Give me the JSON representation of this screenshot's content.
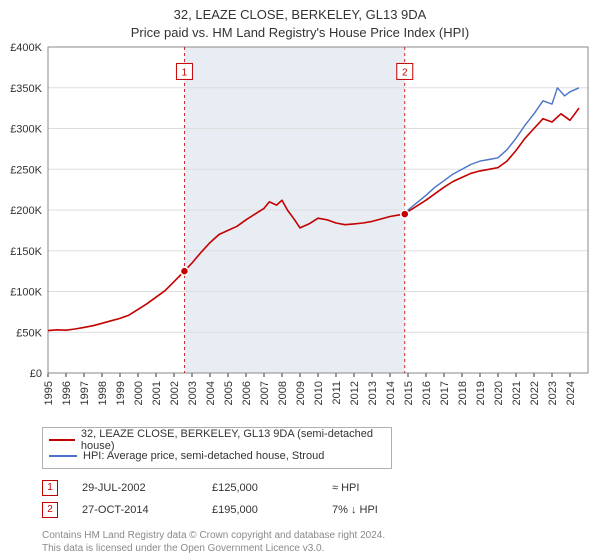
{
  "title_line1": "32, LEAZE CLOSE, BERKELEY, GL13 9DA",
  "title_line2": "Price paid vs. HM Land Registry's House Price Index (HPI)",
  "chart": {
    "type": "line",
    "xlim": [
      1995,
      2025
    ],
    "ylim": [
      0,
      400000
    ],
    "ytick_step": 50000,
    "ytick_labels": [
      "£0",
      "£50K",
      "£100K",
      "£150K",
      "£200K",
      "£250K",
      "£300K",
      "£350K",
      "£400K"
    ],
    "xtick_step": 1,
    "xtick_labels": [
      "1995",
      "1996",
      "1997",
      "1998",
      "1999",
      "2000",
      "2001",
      "2002",
      "2003",
      "2004",
      "2005",
      "2006",
      "2007",
      "2008",
      "2009",
      "2010",
      "2011",
      "2012",
      "2013",
      "2014",
      "2015",
      "2016",
      "2017",
      "2018",
      "2019",
      "2020",
      "2021",
      "2022",
      "2023",
      "2024"
    ],
    "background_color": "#ffffff",
    "plot_bg_color": "#ffffff",
    "grid_color": "#dddddd",
    "shaded_band_color": "#e8ecf3",
    "shaded_band_xrange": [
      2002.58,
      2014.82
    ],
    "axis_label_fontsize": 11,
    "tick_fontsize": 11,
    "xtick_rotation": -90,
    "series": [
      {
        "name": "price_paid",
        "color": "#c40000",
        "line_width": 1.6,
        "points": [
          [
            1995.0,
            52000
          ],
          [
            1995.5,
            53000
          ],
          [
            1996.0,
            52500
          ],
          [
            1996.5,
            54000
          ],
          [
            1997.0,
            56000
          ],
          [
            1997.5,
            58000
          ],
          [
            1998.0,
            61000
          ],
          [
            1998.5,
            64000
          ],
          [
            1999.0,
            67000
          ],
          [
            1999.5,
            71000
          ],
          [
            2000.0,
            78000
          ],
          [
            2000.5,
            85000
          ],
          [
            2001.0,
            93000
          ],
          [
            2001.5,
            101000
          ],
          [
            2002.0,
            112000
          ],
          [
            2002.58,
            125000
          ],
          [
            2003.0,
            135000
          ],
          [
            2003.5,
            148000
          ],
          [
            2004.0,
            160000
          ],
          [
            2004.5,
            170000
          ],
          [
            2005.0,
            175000
          ],
          [
            2005.5,
            180000
          ],
          [
            2006.0,
            188000
          ],
          [
            2006.5,
            195000
          ],
          [
            2007.0,
            202000
          ],
          [
            2007.3,
            210000
          ],
          [
            2007.7,
            206000
          ],
          [
            2008.0,
            212000
          ],
          [
            2008.3,
            200000
          ],
          [
            2008.7,
            188000
          ],
          [
            2009.0,
            178000
          ],
          [
            2009.5,
            183000
          ],
          [
            2010.0,
            190000
          ],
          [
            2010.5,
            188000
          ],
          [
            2011.0,
            184000
          ],
          [
            2011.5,
            182000
          ],
          [
            2012.0,
            183000
          ],
          [
            2012.5,
            184000
          ],
          [
            2013.0,
            186000
          ],
          [
            2013.5,
            189000
          ],
          [
            2014.0,
            192000
          ],
          [
            2014.5,
            194000
          ],
          [
            2014.82,
            195000
          ],
          [
            2015.0,
            198000
          ],
          [
            2015.5,
            205000
          ],
          [
            2016.0,
            212000
          ],
          [
            2016.5,
            220000
          ],
          [
            2017.0,
            228000
          ],
          [
            2017.5,
            235000
          ],
          [
            2018.0,
            240000
          ],
          [
            2018.5,
            245000
          ],
          [
            2019.0,
            248000
          ],
          [
            2019.5,
            250000
          ],
          [
            2020.0,
            252000
          ],
          [
            2020.5,
            260000
          ],
          [
            2021.0,
            273000
          ],
          [
            2021.5,
            288000
          ],
          [
            2022.0,
            300000
          ],
          [
            2022.5,
            312000
          ],
          [
            2023.0,
            308000
          ],
          [
            2023.5,
            318000
          ],
          [
            2024.0,
            310000
          ],
          [
            2024.5,
            325000
          ]
        ]
      },
      {
        "name": "hpi",
        "color": "#4a74c9",
        "line_width": 1.4,
        "points": [
          [
            2014.82,
            195000
          ],
          [
            2015.0,
            200000
          ],
          [
            2015.5,
            209000
          ],
          [
            2016.0,
            218000
          ],
          [
            2016.5,
            228000
          ],
          [
            2017.0,
            236000
          ],
          [
            2017.5,
            244000
          ],
          [
            2018.0,
            250000
          ],
          [
            2018.5,
            256000
          ],
          [
            2019.0,
            260000
          ],
          [
            2019.5,
            262000
          ],
          [
            2020.0,
            264000
          ],
          [
            2020.5,
            274000
          ],
          [
            2021.0,
            288000
          ],
          [
            2021.5,
            304000
          ],
          [
            2022.0,
            318000
          ],
          [
            2022.5,
            334000
          ],
          [
            2023.0,
            330000
          ],
          [
            2023.3,
            350000
          ],
          [
            2023.7,
            340000
          ],
          [
            2024.0,
            345000
          ],
          [
            2024.5,
            350000
          ]
        ]
      }
    ],
    "sale_markers": [
      {
        "n": "1",
        "x": 2002.58,
        "y": 125000,
        "box_y": 370000
      },
      {
        "n": "2",
        "x": 2014.82,
        "y": 195000,
        "box_y": 370000
      }
    ],
    "marker_box_color": "#c40000",
    "marker_dot_fill": "#c40000",
    "marker_dot_stroke": "#ffffff",
    "marker_dot_radius": 4
  },
  "legend": {
    "items": [
      {
        "color": "#c40000",
        "label": "32, LEAZE CLOSE, BERKELEY, GL13 9DA (semi-detached house)"
      },
      {
        "color": "#4a74c9",
        "label": "HPI: Average price, semi-detached house, Stroud"
      }
    ]
  },
  "sales": [
    {
      "n": "1",
      "date": "29-JUL-2002",
      "price": "£125,000",
      "delta": "≈ HPI"
    },
    {
      "n": "2",
      "date": "27-OCT-2014",
      "price": "£195,000",
      "delta": "7% ↓ HPI"
    }
  ],
  "footer_line1": "Contains HM Land Registry data © Crown copyright and database right 2024.",
  "footer_line2": "This data is licensed under the Open Government Licence v3.0."
}
